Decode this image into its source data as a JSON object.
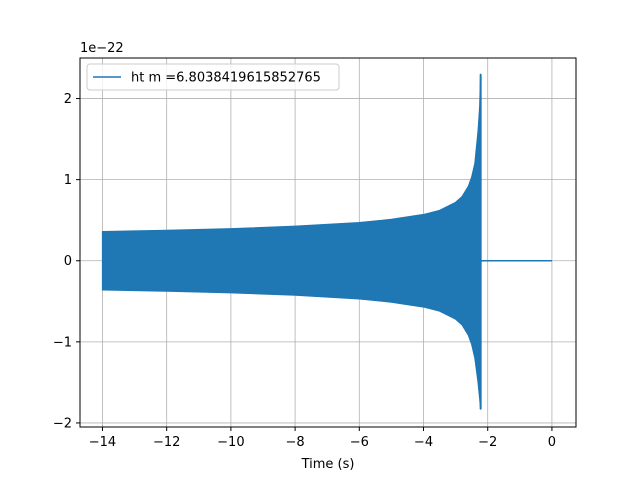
{
  "chart_data": {
    "type": "line",
    "title": "",
    "xlabel": "Time (s)",
    "ylabel": "",
    "y_offset_label": "1e−22",
    "xlim": [
      -14.7,
      0.75
    ],
    "ylim": [
      -2.05,
      2.5
    ],
    "x_ticks": [
      -14,
      -12,
      -10,
      -8,
      -6,
      -4,
      -2,
      0
    ],
    "x_tick_labels": [
      "−14",
      "−12",
      "−10",
      "−8",
      "−6",
      "−4",
      "−2",
      "0"
    ],
    "y_ticks": [
      -2,
      -1,
      0,
      1,
      2
    ],
    "y_tick_labels": [
      "−2",
      "−1",
      "0",
      "1",
      "2"
    ],
    "grid": true,
    "legend_position": "top-left",
    "series": [
      {
        "name": "ht m =6.8038419615852765",
        "color": "#1f77b4",
        "envelope": {
          "x": [
            -14.0,
            -12.0,
            -10.0,
            -8.0,
            -6.0,
            -5.0,
            -4.0,
            -3.5,
            -3.0,
            -2.8,
            -2.6,
            -2.5,
            -2.4,
            -2.3,
            -2.25,
            -2.22
          ],
          "upper": [
            0.36,
            0.375,
            0.395,
            0.425,
            0.47,
            0.51,
            0.57,
            0.62,
            0.72,
            0.79,
            0.92,
            1.03,
            1.2,
            1.6,
            1.9,
            2.3
          ],
          "lower": [
            -0.36,
            -0.375,
            -0.395,
            -0.425,
            -0.47,
            -0.51,
            -0.57,
            -0.62,
            -0.72,
            -0.79,
            -0.92,
            -1.03,
            -1.2,
            -1.5,
            -1.7,
            -1.83
          ]
        },
        "flat_segment": {
          "x": [
            -2.2,
            0.0
          ],
          "y": 0.0
        }
      }
    ]
  }
}
